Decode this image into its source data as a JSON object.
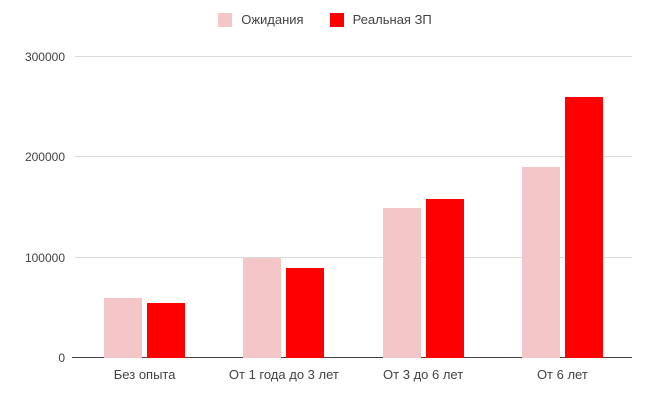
{
  "chart_data": {
    "type": "bar",
    "title": "",
    "categories": [
      "Без опыта",
      "От 1 года до 3 лет",
      "От 3 до 6 лет",
      "От 6 лет"
    ],
    "series": [
      {
        "name": "Ожидания",
        "color": "#f5c6c8",
        "values": [
          60000,
          100000,
          150000,
          190000
        ]
      },
      {
        "name": "Реальная ЗП",
        "color": "#ff0000",
        "values": [
          55000,
          90000,
          158000,
          260000
        ]
      }
    ],
    "xlabel": "",
    "ylabel": "",
    "ylim": [
      0,
      300000
    ],
    "yticks": [
      0,
      100000,
      200000,
      300000
    ],
    "grid": true,
    "legend_position": "top"
  },
  "colors": {
    "gridline": "#dadada",
    "axis_line": "#424242",
    "tick_text": "#424242",
    "background": "#ffffff"
  }
}
